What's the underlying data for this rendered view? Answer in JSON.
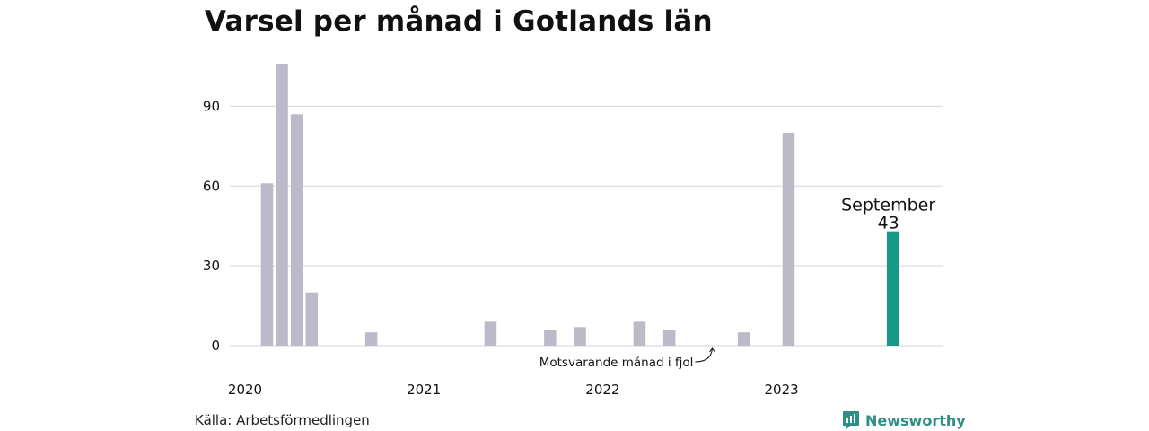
{
  "title": "Varsel per månad i Gotlands län",
  "source": "Källa: Arbetsförmedlingen",
  "brand": {
    "name": "Newsworthy",
    "icon": "newsworthy-logo-icon",
    "color": "#2f8f85"
  },
  "chart_data": {
    "type": "bar",
    "title": "Varsel per månad i Gotlands län",
    "ylim": [
      0,
      100
    ],
    "yticks": [
      0,
      30,
      60,
      90
    ],
    "grid": true,
    "x_start": "2020-01",
    "x_tick_labels": [
      {
        "month": "2020-01",
        "label": "2020"
      },
      {
        "month": "2021-01",
        "label": "2021"
      },
      {
        "month": "2022-01",
        "label": "2022"
      },
      {
        "month": "2023-01",
        "label": "2023"
      }
    ],
    "bars": [
      {
        "month": "2020-03",
        "value": 61
      },
      {
        "month": "2020-04",
        "value": 106
      },
      {
        "month": "2020-05",
        "value": 87
      },
      {
        "month": "2020-06",
        "value": 20
      },
      {
        "month": "2020-10",
        "value": 5
      },
      {
        "month": "2021-06",
        "value": 9
      },
      {
        "month": "2021-10",
        "value": 6
      },
      {
        "month": "2021-12",
        "value": 7
      },
      {
        "month": "2022-04",
        "value": 9
      },
      {
        "month": "2022-06",
        "value": 6
      },
      {
        "month": "2022-11",
        "value": 5
      },
      {
        "month": "2023-02",
        "value": 80
      },
      {
        "month": "2023-09",
        "value": 43,
        "highlight": true
      }
    ],
    "bar_color": "#bcbac8",
    "highlight_color": "#17998a",
    "highlight_label": {
      "name": "September",
      "value": "43"
    },
    "annotation": {
      "text": "Motsvarande månad i fjol",
      "month": "2022-09"
    }
  }
}
